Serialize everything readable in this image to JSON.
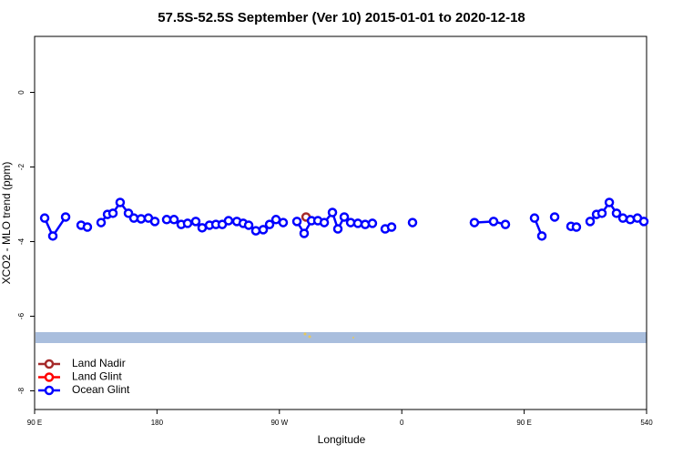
{
  "chart_data": {
    "type": "line",
    "title": "57.5S-52.5S September (Ver 10)   2015-01-01 to 2020-12-18",
    "x_label": "Longitude",
    "y_label": "XCO2 - MLO trend (ppm)",
    "xlim": [
      90,
      540
    ],
    "xticks": [
      {
        "value": 90,
        "label": "90 E"
      },
      180,
      {
        "value": 270,
        "label": "90 W"
      },
      {
        "value": 360,
        "label": "0"
      },
      {
        "value": 450,
        "label": "90 E"
      },
      540
    ],
    "ylim": [
      -8.5,
      1.5
    ],
    "yticks": [
      0,
      -2,
      -4,
      -6,
      -8
    ],
    "legend": "bottom-left",
    "series": [
      {
        "name": "Land Nadir",
        "color": "#a52a2a",
        "x": [
          289.6
        ],
        "values": [
          -3.34
        ]
      },
      {
        "name": "Land Glint",
        "color": "#ff0000",
        "x": [],
        "values": []
      },
      {
        "name": "Ocean Glint",
        "color": "#0000ff",
        "x": [
          97.4,
          103.4,
          112.8,
          null,
          124.2,
          128.8,
          null,
          138.9,
          143.6,
          147.6,
          152.9,
          159,
          163,
          168.3,
          173.7,
          178.4,
          null,
          187.1,
          192.5,
          197.8,
          202.5,
          208.5,
          213.2,
          218.6,
          223.3,
          228,
          232.6,
          238.7,
          243.4,
          247.4,
          252.7,
          258.1,
          262.8,
          267.5,
          272.8,
          null,
          282.9,
          288.2,
          293.6,
          298.3,
          303,
          309,
          313,
          317.7,
          322.4,
          327.7,
          333.1,
          338.4,
          null,
          347.8,
          352.5,
          null,
          367.9,
          null,
          413.4,
          427.5,
          436.2,
          null,
          457.6,
          463,
          null,
          472.4,
          null,
          484.4,
          488.4,
          null,
          498.5,
          503.2,
          507.2,
          512.6,
          517.9,
          522.6,
          528,
          533.3,
          538
        ],
        "values": [
          -3.37,
          -3.85,
          -3.34,
          null,
          -3.56,
          -3.61,
          null,
          -3.49,
          -3.27,
          -3.24,
          -2.95,
          -3.24,
          -3.37,
          -3.39,
          -3.37,
          -3.46,
          null,
          -3.41,
          -3.41,
          -3.54,
          -3.51,
          -3.46,
          -3.63,
          -3.56,
          -3.54,
          -3.54,
          -3.44,
          -3.46,
          -3.51,
          -3.56,
          -3.71,
          -3.68,
          -3.54,
          -3.41,
          -3.49,
          null,
          -3.46,
          -3.78,
          -3.44,
          -3.44,
          -3.49,
          -3.22,
          -3.66,
          -3.34,
          -3.49,
          -3.51,
          -3.54,
          -3.51,
          null,
          -3.66,
          -3.61,
          null,
          -3.49,
          null,
          -3.49,
          -3.46,
          -3.54,
          null,
          -3.37,
          -3.85,
          null,
          -3.34,
          null,
          -3.59,
          -3.61,
          null,
          -3.46,
          -3.27,
          -3.24,
          -2.95,
          -3.24,
          -3.37,
          -3.41,
          -3.37,
          -3.46
        ]
      }
    ]
  }
}
